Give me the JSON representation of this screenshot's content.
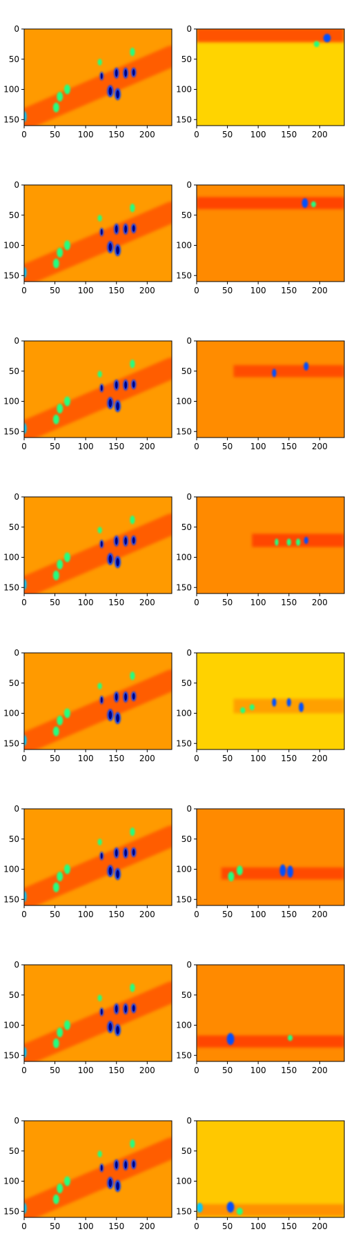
{
  "chart_data": {
    "type": "heatmap",
    "layout": {
      "rows": 8,
      "cols": 2
    },
    "colormap": "jet",
    "common_axes": {
      "x_ticks": [
        0,
        50,
        100,
        150,
        200
      ],
      "y_ticks": [
        0,
        50,
        100,
        150
      ],
      "xlim": [
        0,
        240
      ],
      "ylim": [
        160,
        0
      ]
    },
    "panels": [
      {
        "row": 0,
        "col": 0,
        "kind": "full",
        "background": "#ff9a00",
        "band": null
      },
      {
        "row": 0,
        "col": 1,
        "kind": "row",
        "background": "#ffd400",
        "band": {
          "center_y": 10,
          "height": 24,
          "x_start": 0,
          "x_end": 240,
          "color": "#ff3d00"
        }
      },
      {
        "row": 1,
        "col": 0,
        "kind": "full",
        "background": "#ff9a00",
        "band": null
      },
      {
        "row": 1,
        "col": 1,
        "kind": "row",
        "background": "#ff8a00",
        "band": {
          "center_y": 30,
          "height": 20,
          "x_start": 0,
          "x_end": 240,
          "color": "#ff3800"
        }
      },
      {
        "row": 2,
        "col": 0,
        "kind": "full",
        "background": "#ff9a00",
        "band": null
      },
      {
        "row": 2,
        "col": 1,
        "kind": "row",
        "background": "#ff8c00",
        "band": {
          "center_y": 50,
          "height": 20,
          "x_start": 60,
          "x_end": 240,
          "color": "#ff4300"
        }
      },
      {
        "row": 3,
        "col": 0,
        "kind": "full",
        "background": "#ff9a00",
        "band": null
      },
      {
        "row": 3,
        "col": 1,
        "kind": "row",
        "background": "#ff8a00",
        "band": {
          "center_y": 72,
          "height": 22,
          "x_start": 90,
          "x_end": 240,
          "color": "#ff3a00"
        }
      },
      {
        "row": 4,
        "col": 0,
        "kind": "full",
        "background": "#ff9a00",
        "band": null
      },
      {
        "row": 4,
        "col": 1,
        "kind": "row",
        "background": "#ffd200",
        "band": {
          "center_y": 88,
          "height": 24,
          "x_start": 60,
          "x_end": 240,
          "color": "#ff9800"
        }
      },
      {
        "row": 5,
        "col": 0,
        "kind": "full",
        "background": "#ff9a00",
        "band": null
      },
      {
        "row": 5,
        "col": 1,
        "kind": "row",
        "background": "#ff8a00",
        "band": {
          "center_y": 107,
          "height": 20,
          "x_start": 40,
          "x_end": 240,
          "color": "#ff4000"
        }
      },
      {
        "row": 6,
        "col": 0,
        "kind": "full",
        "background": "#ff9a00",
        "band": null
      },
      {
        "row": 6,
        "col": 1,
        "kind": "row",
        "background": "#ff8a00",
        "band": {
          "center_y": 127,
          "height": 20,
          "x_start": 0,
          "x_end": 240,
          "color": "#ff3a00"
        }
      },
      {
        "row": 7,
        "col": 0,
        "kind": "full",
        "background": "#ff9a00",
        "band": null
      },
      {
        "row": 7,
        "col": 1,
        "kind": "row",
        "background": "#ffc800",
        "band": {
          "center_y": 148,
          "height": 20,
          "x_start": 0,
          "x_end": 240,
          "color": "#ff8800"
        }
      }
    ],
    "full_image": {
      "diagonal_band": {
        "x1": 0,
        "y1": 150,
        "x2": 240,
        "y2": 45,
        "width": 35,
        "color": "#ff4a00"
      },
      "blobs": [
        {
          "x": 0,
          "y": 145,
          "w": 8,
          "h": 18,
          "color": "#00c8ff",
          "type": "cold"
        },
        {
          "x": 52,
          "y": 130,
          "w": 10,
          "h": 16,
          "color": "#20ff80",
          "type": "cool"
        },
        {
          "x": 58,
          "y": 112,
          "w": 10,
          "h": 16,
          "color": "#20ff80",
          "type": "cool"
        },
        {
          "x": 70,
          "y": 100,
          "w": 10,
          "h": 16,
          "color": "#20ff80",
          "type": "cool"
        },
        {
          "x": 123,
          "y": 55,
          "w": 7,
          "h": 11,
          "color": "#20ff80",
          "type": "cool"
        },
        {
          "x": 176,
          "y": 38,
          "w": 8,
          "h": 14,
          "color": "#20ff80",
          "type": "cool"
        },
        {
          "x": 126,
          "y": 78,
          "w": 6,
          "h": 14,
          "color": "#0040ff",
          "type": "hot"
        },
        {
          "x": 150,
          "y": 73,
          "w": 8,
          "h": 18,
          "color": "#0040ff",
          "type": "hot"
        },
        {
          "x": 165,
          "y": 73,
          "w": 8,
          "h": 18,
          "color": "#0040ff",
          "type": "hot"
        },
        {
          "x": 178,
          "y": 72,
          "w": 8,
          "h": 16,
          "color": "#0040ff",
          "type": "hot"
        },
        {
          "x": 140,
          "y": 103,
          "w": 10,
          "h": 20,
          "color": "#0040ff",
          "type": "hot"
        },
        {
          "x": 152,
          "y": 108,
          "w": 10,
          "h": 20,
          "color": "#0040ff",
          "type": "hot"
        }
      ]
    },
    "row_panel_blobs": [
      [
        {
          "x": 212,
          "y": 15,
          "w": 12,
          "h": 14,
          "color": "#0050ff"
        },
        {
          "x": 195,
          "y": 25,
          "w": 9,
          "h": 10,
          "color": "#20ff80"
        }
      ],
      [
        {
          "x": 176,
          "y": 30,
          "w": 10,
          "h": 16,
          "color": "#0050ff"
        },
        {
          "x": 190,
          "y": 32,
          "w": 8,
          "h": 10,
          "color": "#20ff80"
        }
      ],
      [
        {
          "x": 126,
          "y": 53,
          "w": 7,
          "h": 14,
          "color": "#0050ff"
        },
        {
          "x": 178,
          "y": 42,
          "w": 8,
          "h": 14,
          "color": "#0050ff"
        }
      ],
      [
        {
          "x": 130,
          "y": 75,
          "w": 6,
          "h": 12,
          "color": "#20ff80"
        },
        {
          "x": 150,
          "y": 75,
          "w": 7,
          "h": 12,
          "color": "#20ff80"
        },
        {
          "x": 165,
          "y": 75,
          "w": 7,
          "h": 12,
          "color": "#20ff80"
        },
        {
          "x": 178,
          "y": 72,
          "w": 7,
          "h": 12,
          "color": "#0050ff"
        }
      ],
      [
        {
          "x": 75,
          "y": 95,
          "w": 8,
          "h": 10,
          "color": "#20ff80"
        },
        {
          "x": 90,
          "y": 90,
          "w": 8,
          "h": 10,
          "color": "#20ff80"
        },
        {
          "x": 126,
          "y": 82,
          "w": 7,
          "h": 14,
          "color": "#0050ff"
        },
        {
          "x": 150,
          "y": 82,
          "w": 7,
          "h": 14,
          "color": "#0050ff"
        },
        {
          "x": 170,
          "y": 90,
          "w": 8,
          "h": 16,
          "color": "#0050ff"
        }
      ],
      [
        {
          "x": 56,
          "y": 112,
          "w": 10,
          "h": 16,
          "color": "#20ff80"
        },
        {
          "x": 70,
          "y": 102,
          "w": 10,
          "h": 16,
          "color": "#20ff80"
        },
        {
          "x": 140,
          "y": 102,
          "w": 10,
          "h": 20,
          "color": "#0050ff"
        },
        {
          "x": 152,
          "y": 104,
          "w": 10,
          "h": 20,
          "color": "#0050ff"
        }
      ],
      [
        {
          "x": 55,
          "y": 123,
          "w": 12,
          "h": 20,
          "color": "#0050ff"
        },
        {
          "x": 152,
          "y": 121,
          "w": 8,
          "h": 10,
          "color": "#20ff80"
        }
      ],
      [
        {
          "x": 5,
          "y": 144,
          "w": 10,
          "h": 16,
          "color": "#00c8ff"
        },
        {
          "x": 55,
          "y": 143,
          "w": 12,
          "h": 18,
          "color": "#0050ff"
        },
        {
          "x": 70,
          "y": 150,
          "w": 10,
          "h": 12,
          "color": "#20ff80"
        }
      ]
    ]
  }
}
